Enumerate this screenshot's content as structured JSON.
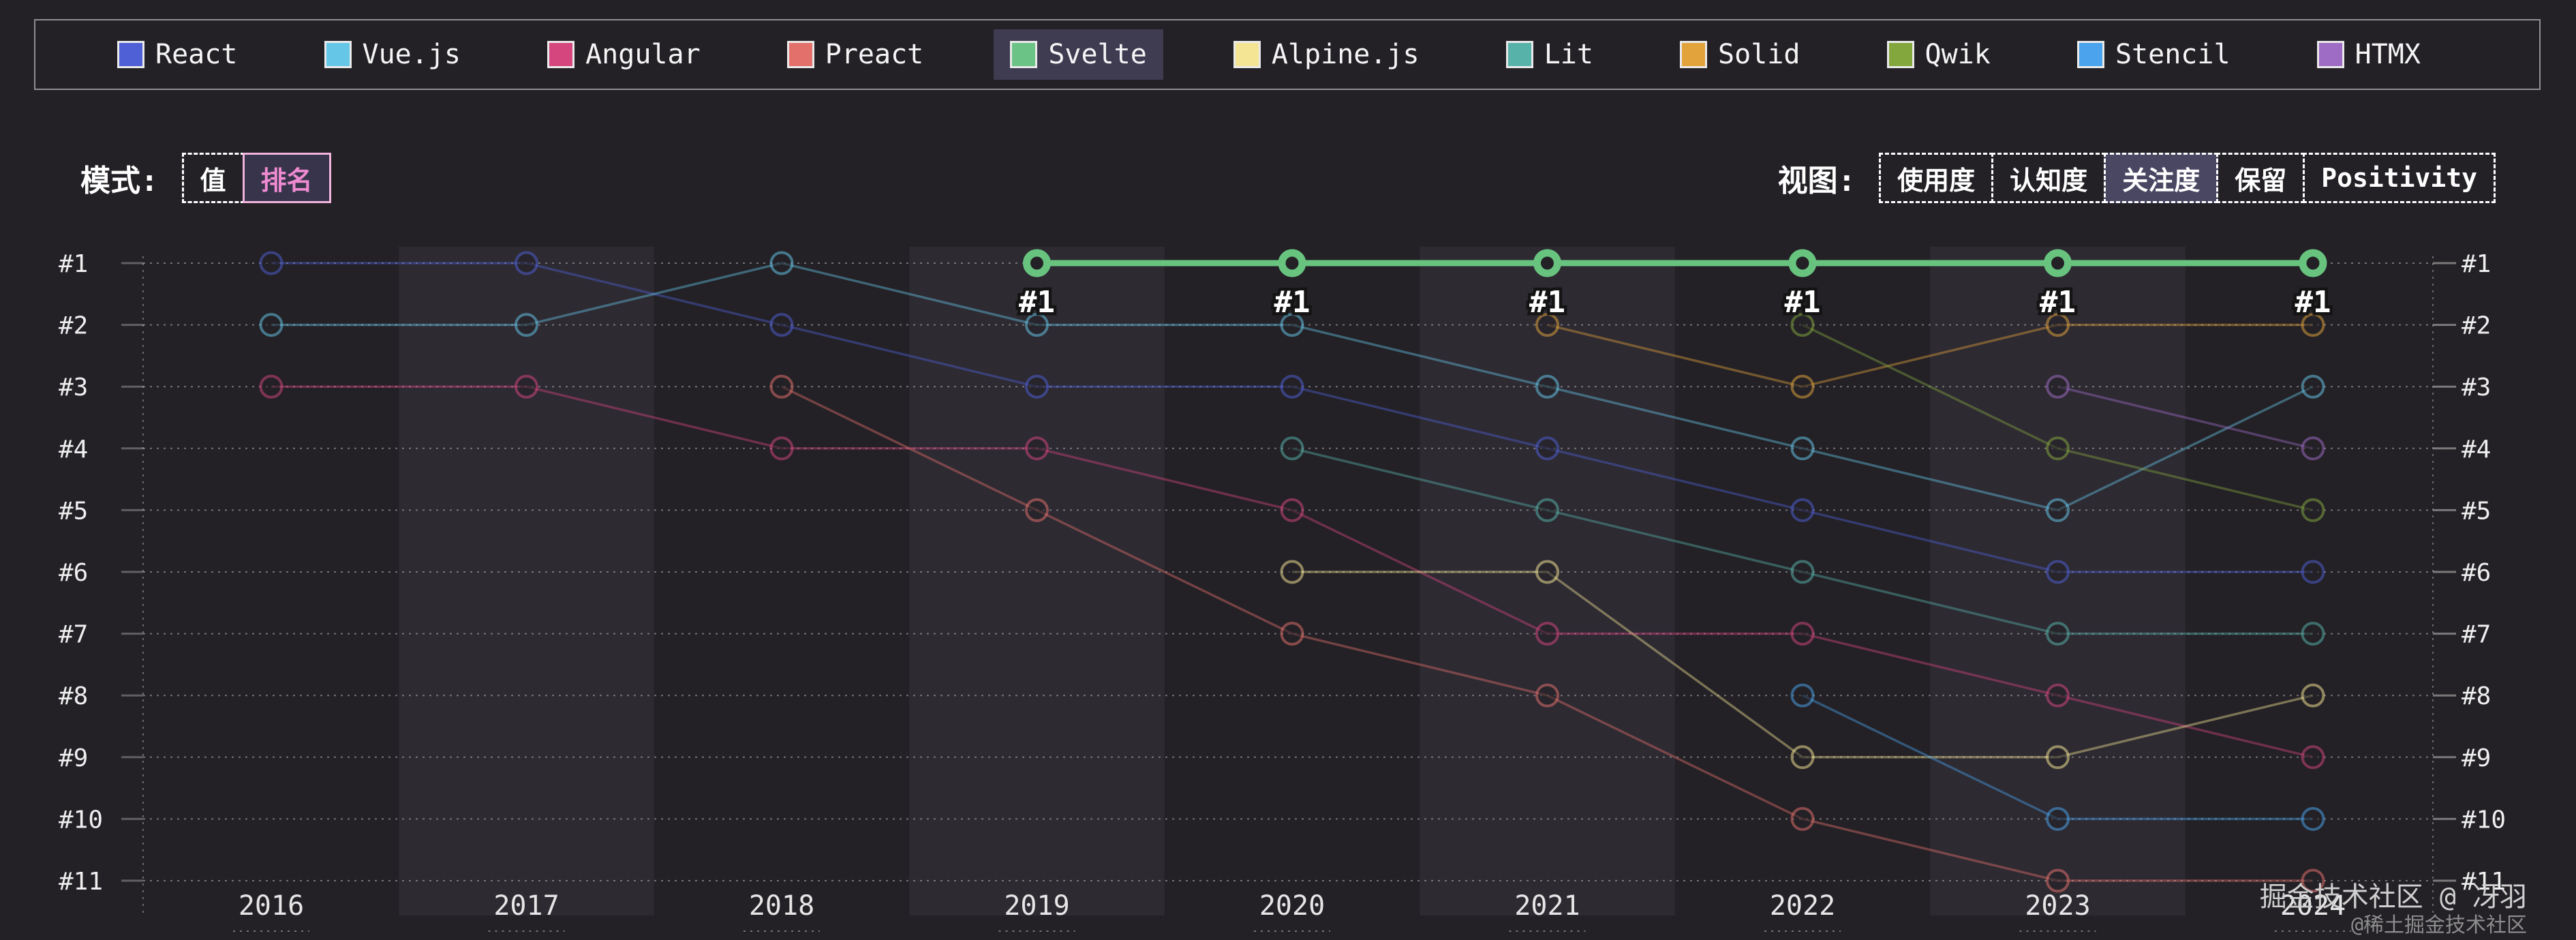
{
  "legend": {
    "items": [
      {
        "id": "react",
        "label": "React",
        "color": "#4f5fd5",
        "selected": false
      },
      {
        "id": "vuejs",
        "label": "Vue.js",
        "color": "#66c6e8",
        "selected": false
      },
      {
        "id": "angular",
        "label": "Angular",
        "color": "#d6467e",
        "selected": false
      },
      {
        "id": "preact",
        "label": "Preact",
        "color": "#e4706c",
        "selected": false
      },
      {
        "id": "svelte",
        "label": "Svelte",
        "color": "#6cc386",
        "selected": true
      },
      {
        "id": "alpinejs",
        "label": "Alpine.js",
        "color": "#f4e594",
        "selected": false
      },
      {
        "id": "lit",
        "label": "Lit",
        "color": "#57b3aa",
        "selected": false
      },
      {
        "id": "solid",
        "label": "Solid",
        "color": "#e2a33c",
        "selected": false
      },
      {
        "id": "qwik",
        "label": "Qwik",
        "color": "#83a73d",
        "selected": false
      },
      {
        "id": "stencil",
        "label": "Stencil",
        "color": "#4aa3ec",
        "selected": false
      },
      {
        "id": "htmx",
        "label": "HTMX",
        "color": "#9e6bc5",
        "selected": false
      }
    ]
  },
  "controls": {
    "mode": {
      "label": "模式:",
      "options": [
        {
          "id": "value",
          "label": "值",
          "selected": false
        },
        {
          "id": "rank",
          "label": "排名",
          "selected": true
        }
      ]
    },
    "view": {
      "label": "视图:",
      "options": [
        {
          "id": "usage",
          "label": "使用度",
          "selected": false
        },
        {
          "id": "awareness",
          "label": "认知度",
          "selected": false
        },
        {
          "id": "interest",
          "label": "关注度",
          "selected": true
        },
        {
          "id": "retention",
          "label": "保留",
          "selected": false
        },
        {
          "id": "positivity",
          "label": "Positivity",
          "selected": false
        }
      ]
    }
  },
  "watermark": {
    "line1": "掘金技术社区 @ 冴羽",
    "line2": "@稀土掘金技术社区"
  },
  "chart_data": {
    "type": "line",
    "subtype": "bump-rank-chart",
    "title": "",
    "xlabel": "",
    "ylabel": "rank",
    "x": [
      2016,
      2017,
      2018,
      2019,
      2020,
      2021,
      2022,
      2023,
      2024
    ],
    "rank_labels": [
      "#1",
      "#2",
      "#3",
      "#4",
      "#5",
      "#6",
      "#7",
      "#8",
      "#9",
      "#10",
      "#11"
    ],
    "ylim": [
      1,
      11
    ],
    "y_inverted": true,
    "grid": "dotted-horizontal",
    "highlight_series": "Svelte",
    "point_label_on_highlight": "#1",
    "band_years": [
      2017,
      2019,
      2021,
      2023
    ],
    "series": [
      {
        "name": "React",
        "color": "#4f5fd5",
        "values": [
          1,
          1,
          2,
          3,
          3,
          4,
          5,
          6,
          6
        ]
      },
      {
        "name": "Vue.js",
        "color": "#66c6e8",
        "values": [
          2,
          2,
          1,
          2,
          2,
          3,
          4,
          5,
          3
        ]
      },
      {
        "name": "Angular",
        "color": "#d6467e",
        "values": [
          3,
          3,
          4,
          4,
          5,
          7,
          7,
          8,
          9
        ]
      },
      {
        "name": "Preact",
        "color": "#e4706c",
        "values": [
          null,
          null,
          3,
          5,
          7,
          8,
          10,
          11,
          11
        ]
      },
      {
        "name": "Alpine.js",
        "color": "#f4e594",
        "values": [
          null,
          null,
          null,
          null,
          6,
          6,
          9,
          9,
          8
        ]
      },
      {
        "name": "Lit",
        "color": "#57b3aa",
        "values": [
          null,
          null,
          null,
          null,
          4,
          5,
          6,
          7,
          7
        ]
      },
      {
        "name": "Solid",
        "color": "#e2a33c",
        "values": [
          null,
          null,
          null,
          null,
          null,
          2,
          3,
          2,
          2
        ]
      },
      {
        "name": "Qwik",
        "color": "#83a73d",
        "values": [
          null,
          null,
          null,
          null,
          null,
          null,
          2,
          4,
          5
        ]
      },
      {
        "name": "Stencil",
        "color": "#4aa3ec",
        "values": [
          null,
          null,
          null,
          null,
          null,
          null,
          8,
          10,
          10
        ]
      },
      {
        "name": "HTMX",
        "color": "#9e6bc5",
        "values": [
          null,
          null,
          null,
          null,
          null,
          null,
          null,
          3,
          4
        ]
      },
      {
        "name": "Svelte",
        "color": "#68c37f",
        "values": [
          null,
          null,
          null,
          1,
          1,
          1,
          1,
          1,
          1
        ]
      }
    ]
  }
}
